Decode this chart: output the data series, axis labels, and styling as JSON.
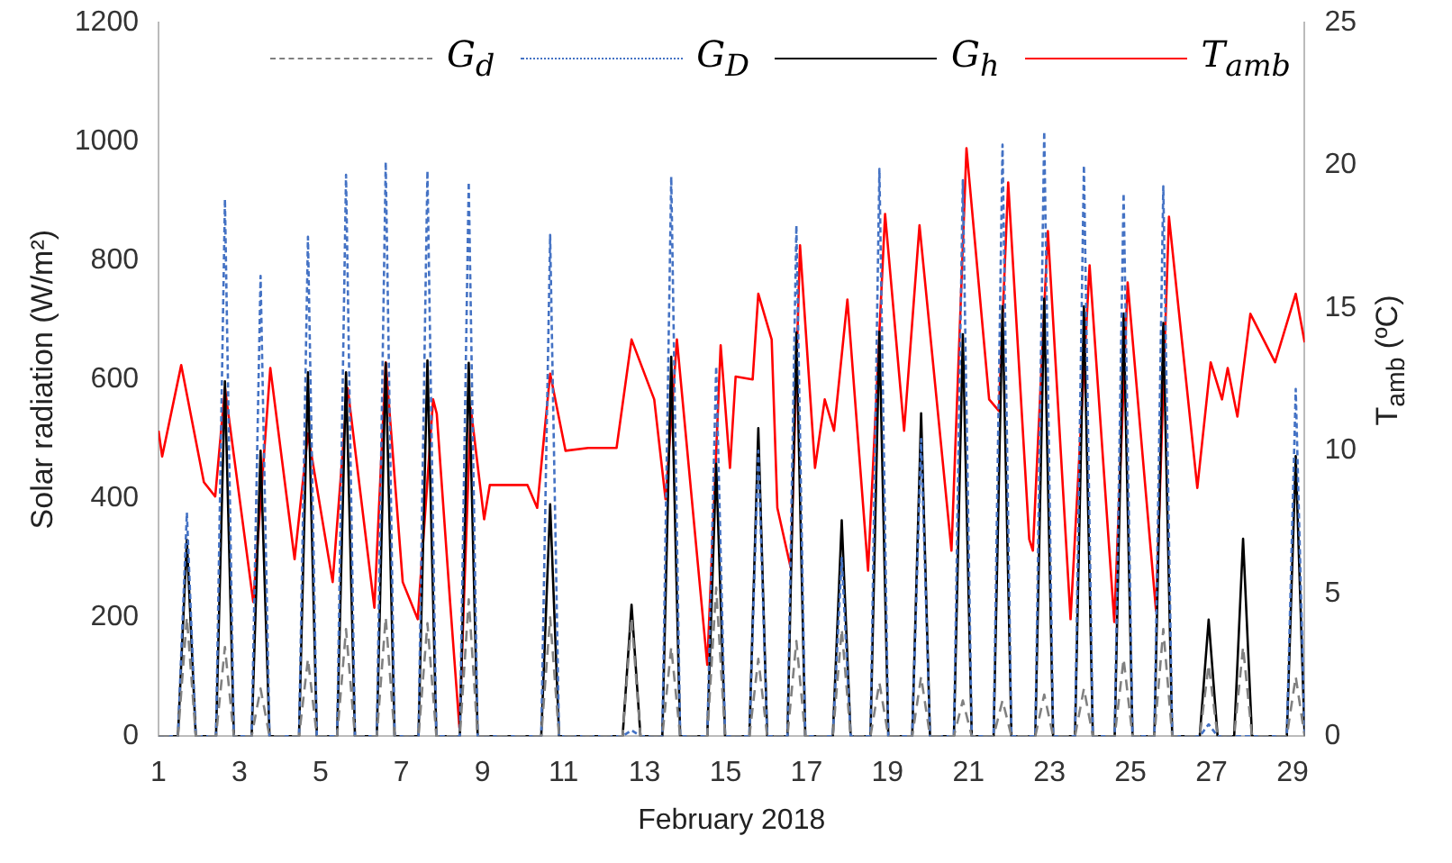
{
  "chart_data": {
    "type": "line",
    "xlabel": "February 2018",
    "ylabel": "Solar radiation (W/m²)",
    "y2label": "T$_{amb}$ (ºC)",
    "xlim": [
      1,
      29.3
    ],
    "xticks": [
      1,
      3,
      5,
      7,
      9,
      11,
      13,
      15,
      17,
      19,
      21,
      23,
      25,
      27,
      29
    ],
    "ylim": [
      0,
      1200
    ],
    "yticks": [
      0,
      200,
      400,
      600,
      800,
      1000,
      1200
    ],
    "y2lim": [
      0,
      25
    ],
    "y2ticks": [
      0,
      5,
      10,
      15,
      20,
      25
    ],
    "grid": false,
    "legend": "top",
    "marker": "none",
    "x": [
      1,
      1.48,
      1.7,
      1.92,
      2.42,
      2.64,
      2.86,
      3.3,
      3.52,
      3.74,
      4.47,
      4.69,
      4.91,
      5.41,
      5.63,
      5.85,
      6.39,
      6.61,
      6.83,
      7.42,
      7.64,
      7.86,
      8.44,
      8.66,
      8.88,
      10.45,
      10.67,
      10.89,
      12.46,
      12.68,
      12.9,
      13.44,
      13.66,
      13.88,
      14.55,
      14.77,
      14.99,
      15.59,
      15.81,
      16.03,
      16.53,
      16.75,
      16.97,
      17.65,
      17.87,
      18.09,
      18.58,
      18.8,
      19.02,
      19.61,
      19.83,
      20.05,
      20.64,
      20.86,
      21.08,
      21.62,
      21.84,
      22.06,
      22.65,
      22.87,
      23.09,
      23.63,
      23.85,
      24.07,
      24.61,
      24.83,
      25.05,
      25.59,
      25.81,
      26.03,
      26.71,
      26.93,
      27.15,
      27.56,
      27.78,
      28.0,
      28.86,
      29.08,
      29.3
    ],
    "series": [
      {
        "name": "G$_{d}$",
        "color": "#808080",
        "line_style": "dashed",
        "values": [
          0,
          0,
          200,
          0,
          0,
          150,
          0,
          0,
          80,
          0,
          0,
          130,
          0,
          0,
          180,
          0,
          0,
          200,
          0,
          0,
          190,
          0,
          0,
          230,
          0,
          0,
          200,
          0,
          0,
          200,
          0,
          0,
          150,
          0,
          0,
          250,
          0,
          0,
          130,
          0,
          0,
          160,
          0,
          0,
          180,
          0,
          0,
          90,
          0,
          0,
          100,
          0,
          0,
          60,
          0,
          0,
          60,
          0,
          0,
          70,
          0,
          0,
          80,
          0,
          0,
          130,
          0,
          0,
          180,
          0,
          0,
          120,
          0,
          0,
          150,
          0,
          0,
          100,
          0
        ]
      },
      {
        "name": "G$_{D}$",
        "color": "#4472c4",
        "line_style": "dotted",
        "values": [
          0,
          0,
          376,
          0,
          0,
          903,
          0,
          0,
          774,
          0,
          0,
          840,
          0,
          0,
          944,
          0,
          0,
          966,
          0,
          0,
          951,
          0,
          0,
          932,
          0,
          0,
          843,
          0,
          0,
          10,
          0,
          0,
          941,
          0,
          0,
          622,
          0,
          0,
          480,
          0,
          0,
          859,
          0,
          0,
          300,
          0,
          0,
          954,
          0,
          0,
          500,
          0,
          0,
          935,
          0,
          0,
          995,
          0,
          0,
          1017,
          0,
          0,
          960,
          0,
          0,
          913,
          0,
          0,
          925,
          0,
          0,
          20,
          0,
          0,
          0,
          0,
          0,
          584,
          0
        ]
      },
      {
        "name": "G$_{h}$",
        "color": "#000000",
        "line_style": "solid",
        "values": [
          0,
          0,
          330,
          0,
          0,
          597,
          0,
          0,
          480,
          0,
          0,
          612,
          0,
          0,
          612,
          0,
          0,
          628,
          0,
          0,
          632,
          0,
          0,
          628,
          0,
          0,
          390,
          0,
          0,
          221,
          0,
          0,
          638,
          0,
          0,
          458,
          0,
          0,
          518,
          0,
          0,
          679,
          0,
          0,
          363,
          0,
          0,
          680,
          0,
          0,
          543,
          0,
          0,
          676,
          0,
          0,
          723,
          0,
          0,
          736,
          0,
          0,
          723,
          0,
          0,
          711,
          0,
          0,
          695,
          0,
          0,
          196,
          0,
          0,
          332,
          0,
          0,
          471,
          0
        ]
      },
      {
        "name": "T$_{amb}$",
        "color": "#ff0000",
        "line_style": "solid",
        "axis": "y2",
        "x": [
          1.0,
          1.09,
          1.56,
          2.12,
          2.4,
          2.64,
          3.34,
          3.76,
          4.36,
          4.69,
          5.3,
          5.67,
          6.33,
          6.61,
          7.03,
          7.4,
          7.78,
          7.87,
          8.2,
          8.43,
          8.71,
          9.04,
          9.18,
          10.11,
          10.35,
          10.67,
          11.05,
          11.61,
          12.31,
          12.68,
          13.24,
          13.52,
          13.8,
          14.55,
          14.88,
          15.11,
          15.25,
          15.67,
          15.81,
          16.14,
          16.28,
          16.61,
          16.84,
          17.21,
          17.45,
          17.68,
          18.01,
          18.52,
          18.94,
          19.41,
          19.79,
          20.58,
          20.95,
          21.51,
          21.75,
          21.98,
          22.5,
          22.59,
          22.96,
          23.52,
          23.99,
          24.6,
          24.93,
          25.63,
          25.95,
          26.65,
          26.98,
          27.26,
          27.4,
          27.64,
          27.96,
          28.57,
          29.08,
          29.3
        ],
        "values": [
          10.7,
          9.8,
          13.0,
          8.9,
          8.4,
          12.2,
          4.7,
          12.9,
          6.2,
          10.6,
          5.4,
          12.2,
          4.5,
          13.1,
          5.4,
          4.1,
          11.8,
          11.3,
          4.7,
          0.3,
          11.5,
          7.6,
          8.8,
          8.8,
          8.0,
          12.7,
          10.0,
          10.1,
          10.1,
          13.9,
          11.8,
          8.3,
          13.9,
          2.5,
          13.7,
          9.4,
          12.6,
          12.5,
          15.5,
          13.9,
          8.0,
          5.9,
          17.2,
          9.4,
          11.8,
          10.7,
          15.3,
          5.8,
          18.3,
          10.7,
          17.9,
          6.5,
          20.6,
          11.8,
          11.4,
          19.4,
          6.9,
          6.5,
          17.7,
          4.1,
          16.5,
          4.0,
          15.9,
          4.4,
          18.2,
          8.7,
          13.1,
          11.8,
          12.9,
          11.2,
          14.8,
          13.1,
          15.5,
          13.8
        ]
      }
    ]
  }
}
